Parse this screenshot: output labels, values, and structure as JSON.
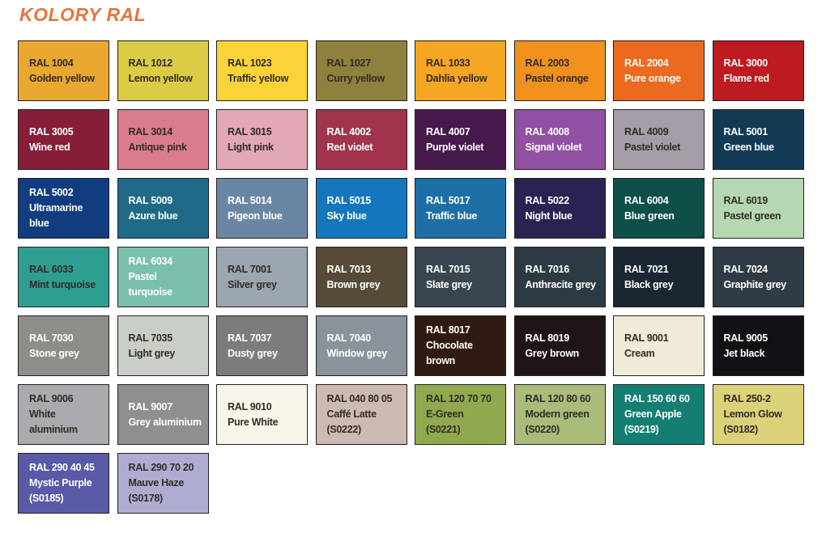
{
  "title": "KOLORY RAL",
  "colors": {
    "title_text": "#E6753E",
    "background": "#FFFFFF",
    "swatch_border": "#231F1D",
    "text_dark": "#322C26",
    "text_light": "#FFFFFF"
  },
  "chart_data": {
    "type": "table",
    "title": "KOLORY RAL",
    "columns": 8,
    "legend_note": "grid of RAL color swatches: code, name, optional sample code, hex fill, text tone",
    "swatches": [
      {
        "code": "RAL 1004",
        "name": "Golden yellow",
        "hex": "#E9A82F",
        "text": "dark"
      },
      {
        "code": "RAL 1012",
        "name": "Lemon yellow",
        "hex": "#DCCB45",
        "text": "dark"
      },
      {
        "code": "RAL 1023",
        "name": "Traffic yellow",
        "hex": "#FAD339",
        "text": "dark"
      },
      {
        "code": "RAL 1027",
        "name": "Curry yellow",
        "hex": "#8E803D",
        "text": "dark"
      },
      {
        "code": "RAL 1033",
        "name": "Dahlia yellow",
        "hex": "#F5A623",
        "text": "dark"
      },
      {
        "code": "RAL 2003",
        "name": "Pastel orange",
        "hex": "#F0911E",
        "text": "dark"
      },
      {
        "code": "RAL 2004",
        "name": "Pure orange",
        "hex": "#EB6A1F",
        "text": "light"
      },
      {
        "code": "RAL 3000",
        "name": "Flame red",
        "hex": "#BD1A21",
        "text": "light"
      },
      {
        "code": "RAL 3005",
        "name": "Wine red",
        "hex": "#871E38",
        "text": "light"
      },
      {
        "code": "RAL 3014",
        "name": "Antique pink",
        "hex": "#DA7C8D",
        "text": "dark"
      },
      {
        "code": "RAL 3015",
        "name": "Light pink",
        "hex": "#E2A8B5",
        "text": "dark"
      },
      {
        "code": "RAL 4002",
        "name": "Red violet",
        "hex": "#A1344C",
        "text": "light"
      },
      {
        "code": "RAL 4007",
        "name": "Purple violet",
        "hex": "#471A4C",
        "text": "light"
      },
      {
        "code": "RAL 4008",
        "name": "Signal violet",
        "hex": "#9150A2",
        "text": "light"
      },
      {
        "code": "RAL 4009",
        "name": "Pastel violet",
        "hex": "#A59EA8",
        "text": "dark"
      },
      {
        "code": "RAL 5001",
        "name": "Green blue",
        "hex": "#123A54",
        "text": "light"
      },
      {
        "code": "RAL 5002",
        "name": "Ultramarine blue",
        "hex": "#103D80",
        "text": "light"
      },
      {
        "code": "RAL 5009",
        "name": "Azure blue",
        "hex": "#1E6A87",
        "text": "light"
      },
      {
        "code": "RAL 5014",
        "name": "Pigeon blue",
        "hex": "#6B86A4",
        "text": "light"
      },
      {
        "code": "RAL 5015",
        "name": "Sky blue",
        "hex": "#1477BD",
        "text": "light"
      },
      {
        "code": "RAL 5017",
        "name": "Traffic blue",
        "hex": "#1D6FA6",
        "text": "light"
      },
      {
        "code": "RAL 5022",
        "name": "Night blue",
        "hex": "#292353",
        "text": "light"
      },
      {
        "code": "RAL 6004",
        "name": "Blue green",
        "hex": "#0E4F48",
        "text": "light"
      },
      {
        "code": "RAL 6019",
        "name": "Pastel green",
        "hex": "#B5D8B2",
        "text": "dark"
      },
      {
        "code": "RAL 6033",
        "name": "Mint turquoise",
        "hex": "#2E9E93",
        "text": "dark"
      },
      {
        "code": "RAL 6034",
        "name": "Pastel turquoise",
        "hex": "#7BC0AF",
        "text": "light"
      },
      {
        "code": "RAL 7001",
        "name": "Silver grey",
        "hex": "#9CA6B0",
        "text": "dark"
      },
      {
        "code": "RAL 7013",
        "name": "Brown grey",
        "hex": "#564B36",
        "text": "light"
      },
      {
        "code": "RAL 7015",
        "name": "Slate grey",
        "hex": "#394650",
        "text": "light"
      },
      {
        "code": "RAL 7016",
        "name": "Anthracite grey",
        "hex": "#2C3A43",
        "text": "light"
      },
      {
        "code": "RAL 7021",
        "name": "Black grey",
        "hex": "#1A2631",
        "text": "light"
      },
      {
        "code": "RAL 7024",
        "name": "Graphite grey",
        "hex": "#2F3B45",
        "text": "light"
      },
      {
        "code": "RAL 7030",
        "name": "Stone grey",
        "hex": "#8C8F87",
        "text": "light"
      },
      {
        "code": "RAL 7035",
        "name": "Light grey",
        "hex": "#C9CFC7",
        "text": "dark"
      },
      {
        "code": "RAL 7037",
        "name": "Dusty grey",
        "hex": "#7A7D7C",
        "text": "light"
      },
      {
        "code": "RAL 7040",
        "name": "Window grey",
        "hex": "#8A939B",
        "text": "light"
      },
      {
        "code": "RAL 8017",
        "name": "Chocolate brown",
        "hex": "#2F1B12",
        "text": "light"
      },
      {
        "code": "RAL 8019",
        "name": "Grey brown",
        "hex": "#1F1516",
        "text": "light"
      },
      {
        "code": "RAL 9001",
        "name": "Cream",
        "hex": "#EFEBD8",
        "text": "dark"
      },
      {
        "code": "RAL 9005",
        "name": "Jet black",
        "hex": "#0F1115",
        "text": "light"
      },
      {
        "code": "RAL 9006",
        "name": "White aluminium",
        "hex": "#A9ABAE",
        "text": "dark"
      },
      {
        "code": "RAL 9007",
        "name": "Grey aluminium",
        "hex": "#8D8F90",
        "text": "light"
      },
      {
        "code": "RAL 9010",
        "name": "Pure White",
        "hex": "#F7F5E9",
        "text": "dark"
      },
      {
        "code": "RAL 040 80 05",
        "name": "Caffé Latte",
        "suffix": "(S0222)",
        "hex": "#CDBAB3",
        "text": "dark"
      },
      {
        "code": "RAL 120 70 70",
        "name": "E-Green",
        "suffix": "(S0221)",
        "hex": "#90A94E",
        "text": "dark"
      },
      {
        "code": "RAL 120 80 60",
        "name": "Modern green",
        "suffix": "(S0220)",
        "hex": "#A9BC7A",
        "text": "dark"
      },
      {
        "code": "RAL 150 60 60",
        "name": "Green Apple",
        "suffix": "(S0219)",
        "hex": "#157E72",
        "text": "light"
      },
      {
        "code": "RAL 250-2",
        "name": "Lemon Glow",
        "suffix": "(S0182)",
        "hex": "#DBD178",
        "text": "dark"
      },
      {
        "code": "RAL 290 40 45",
        "name": "Mystic Purple",
        "suffix": "(S0185)",
        "hex": "#5A59A8",
        "text": "light"
      },
      {
        "code": "RAL 290 70 20",
        "name": "Mauve Haze",
        "suffix": "(S0178)",
        "hex": "#AFACD1",
        "text": "dark"
      }
    ]
  }
}
